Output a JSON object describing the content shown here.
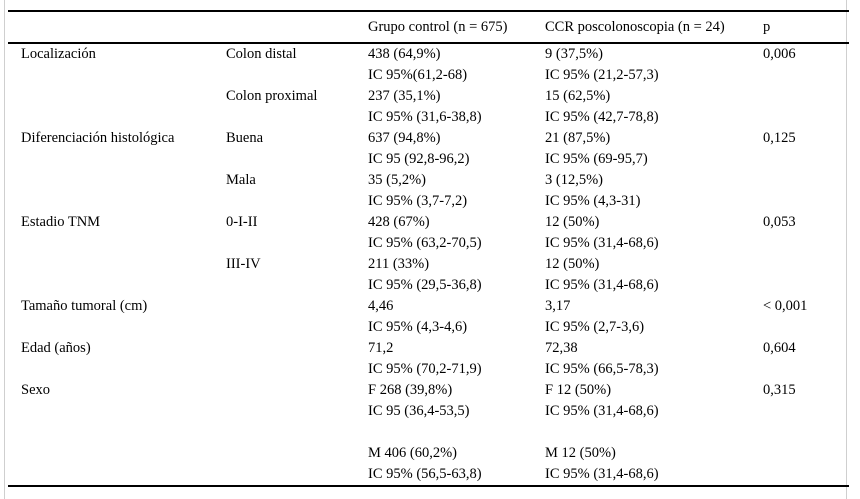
{
  "table": {
    "headers": {
      "category": "",
      "subcategory": "",
      "control": "Grupo control (n = 675)",
      "ccr": "CCR poscolonoscopia (n = 24)",
      "p": "p"
    },
    "rows": [
      {
        "category": "Localización",
        "sub": "Colon distal",
        "control1": "438 (64,9%)",
        "control2": "IC 95%(61,2-68)",
        "ccr1": "9 (37,5%)",
        "ccr2": "IC 95% (21,2-57,3)",
        "p": "0,006"
      },
      {
        "category": "",
        "sub": "Colon proximal",
        "control1": "237 (35,1%)",
        "control2": "IC 95% (31,6-38,8)",
        "ccr1": "15 (62,5%)",
        "ccr2": "IC 95% (42,7-78,8)",
        "p": ""
      },
      {
        "category": "Diferenciación histológica",
        "sub": "Buena",
        "control1": "637 (94,8%)",
        "control2": "IC 95 (92,8-96,2)",
        "ccr1": "21 (87,5%)",
        "ccr2": "IC 95% (69-95,7)",
        "p": "0,125"
      },
      {
        "category": "",
        "sub": "Mala",
        "control1": "35 (5,2%)",
        "control2": "IC 95% (3,7-7,2)",
        "ccr1": "3 (12,5%)",
        "ccr2": "IC 95% (4,3-31)",
        "p": ""
      },
      {
        "category": "Estadio TNM",
        "sub": "0-I-II",
        "control1": "428 (67%)",
        "control2": "IC 95% (63,2-70,5)",
        "ccr1": "12 (50%)",
        "ccr2": "IC 95% (31,4-68,6)",
        "p": "0,053"
      },
      {
        "category": "",
        "sub": "III-IV",
        "control1": "211 (33%)",
        "control2": "IC 95% (29,5-36,8)",
        "ccr1": "12 (50%)",
        "ccr2": "IC 95% (31,4-68,6)",
        "p": ""
      },
      {
        "category": "Tamaño tumoral (cm)",
        "sub": "",
        "control1": "4,46",
        "control2": "IC 95% (4,3-4,6)",
        "ccr1": "3,17",
        "ccr2": "IC 95% (2,7-3,6)",
        "p": "< 0,001"
      },
      {
        "category": "Edad (años)",
        "sub": "",
        "control1": "71,2",
        "control2": "IC 95% (70,2-71,9)",
        "ccr1": "72,38",
        "ccr2": "IC 95% (66,5-78,3)",
        "p": "0,604"
      },
      {
        "category": "Sexo",
        "sub": "",
        "control1": "F 268 (39,8%)",
        "control2": "IC 95 (36,4-53,5)",
        "ccr1": "F 12 (50%)",
        "ccr2": "IC 95% (31,4-68,6)",
        "p": "0,315"
      },
      {
        "category": "",
        "sub": "",
        "control1": "M 406 (60,2%)",
        "control2": "IC 95% (56,5-63,8)",
        "ccr1": "M 12 (50%)",
        "ccr2": "IC 95% (31,4-68,6)",
        "p": ""
      }
    ]
  }
}
